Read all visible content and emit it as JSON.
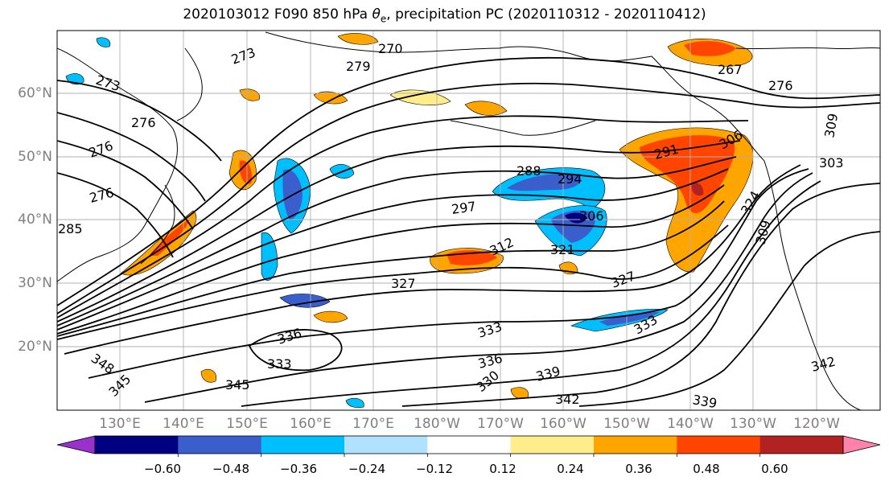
{
  "title": {
    "prefix": "2020103012 F090 850 hPa ",
    "theta": "θ",
    "sub": "e",
    "suffix": ", precipitation PC (2020110312 - 2020110412)"
  },
  "lat_ticks": [
    "60°N",
    "50°N",
    "40°N",
    "30°N",
    "20°N"
  ],
  "lon_ticks": [
    "130°E",
    "140°E",
    "150°E",
    "160°E",
    "170°E",
    "180°W",
    "170°W",
    "160°W",
    "150°W",
    "140°W",
    "130°W",
    "120°W"
  ],
  "contour_labels": [
    "270",
    "273",
    "273",
    "279",
    "267",
    "276",
    "276",
    "276",
    "276",
    "288",
    "294",
    "297",
    "291",
    "306",
    "306",
    "312",
    "321",
    "327",
    "327",
    "324",
    "309",
    "303",
    "309",
    "336",
    "333",
    "333",
    "336",
    "330",
    "339",
    "342",
    "345",
    "348",
    "345",
    "342",
    "339",
    "333",
    "285"
  ],
  "colorbar": {
    "ticks": [
      "−0.60",
      "−0.48",
      "−0.36",
      "−0.24",
      "−0.12",
      "0.12",
      "0.24",
      "0.36",
      "0.48",
      "0.60"
    ],
    "colors": [
      "#9932cc",
      "#000080",
      "#3a5fcd",
      "#00bfff",
      "#b0e2ff",
      "#ffffff",
      "#ffec8b",
      "#ffa500",
      "#ff4500",
      "#b22222",
      "#ff82ab"
    ]
  },
  "palette": {
    "positive_strong": "#ff4500",
    "positive_mid": "#ffa500",
    "positive_weak": "#ffec8b",
    "negative_weak": "#b0e2ff",
    "negative_mid": "#00bfff",
    "negative_strong": "#3a5fcd",
    "negative_max": "#000080",
    "dark_red": "#b22222"
  }
}
